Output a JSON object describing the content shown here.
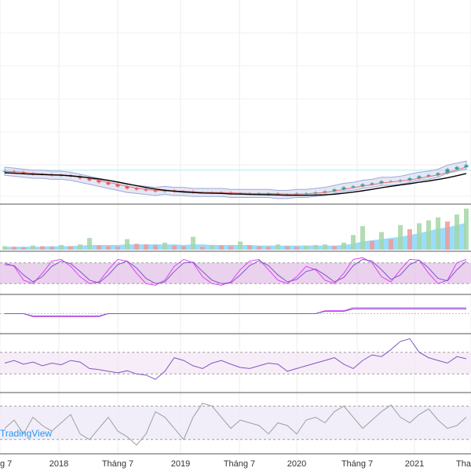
{
  "chart_data": [
    {
      "type": "candlestick",
      "panel": "price",
      "indicators": [
        "bollinger-bands",
        "moving-average-fast",
        "moving-average-slow"
      ],
      "series": [
        {
          "key": "close",
          "values": [
            46,
            45,
            44,
            43,
            43,
            42,
            42,
            41,
            39,
            37,
            35,
            33,
            31,
            29,
            28,
            27,
            26,
            27,
            26,
            26,
            25,
            25,
            25,
            25,
            24,
            24,
            24,
            24,
            24,
            23,
            23,
            24,
            24,
            25,
            26,
            28,
            30,
            31,
            33,
            34,
            36,
            36,
            37,
            39,
            41,
            42,
            44,
            48,
            50,
            52
          ]
        }
      ],
      "reference_line": 47,
      "colors": {
        "up": "#26a69a",
        "down": "#ef5350",
        "bands": "#9fa8da",
        "band_fill": "#c5cae9",
        "ma_fast": "#e57373",
        "ma_slow": "#000000"
      }
    },
    {
      "type": "bar",
      "panel": "volume",
      "series": [
        {
          "key": "volume",
          "values": [
            6,
            5,
            4,
            7,
            6,
            5,
            8,
            6,
            9,
            20,
            7,
            6,
            5,
            18,
            10,
            9,
            8,
            12,
            7,
            6,
            22,
            5,
            8,
            7,
            6,
            14,
            7,
            6,
            5,
            9,
            6,
            5,
            7,
            8,
            9,
            6,
            12,
            25,
            40,
            15,
            30,
            18,
            42,
            35,
            45,
            50,
            55,
            48,
            60,
            70
          ]
        },
        {
          "key": "volume-ma",
          "values": [
            5,
            5,
            5,
            5,
            5,
            6,
            6,
            6,
            7,
            8,
            8,
            8,
            8,
            9,
            9,
            9,
            9,
            9,
            9,
            8,
            9,
            9,
            8,
            8,
            8,
            8,
            8,
            7,
            7,
            7,
            7,
            7,
            7,
            7,
            7,
            7,
            8,
            10,
            14,
            16,
            18,
            20,
            22,
            25,
            28,
            32,
            36,
            38,
            42,
            46
          ]
        }
      ],
      "colors": {
        "up": "#a5d6a7",
        "down": "#ef9a9a",
        "ma_area": "#81d4fa"
      }
    },
    {
      "type": "line",
      "panel": "stochastic",
      "ylim": [
        0,
        100
      ],
      "band": [
        20,
        80
      ],
      "series": [
        {
          "key": "k",
          "values": [
            80,
            70,
            30,
            20,
            50,
            85,
            90,
            70,
            40,
            20,
            25,
            60,
            90,
            85,
            50,
            20,
            15,
            30,
            70,
            90,
            80,
            40,
            20,
            15,
            25,
            60,
            85,
            90,
            60,
            30,
            20,
            40,
            70,
            60,
            30,
            20,
            50,
            90,
            95,
            80,
            40,
            25,
            60,
            90,
            88,
            50,
            20,
            30,
            80,
            90
          ]
        },
        {
          "key": "d",
          "values": [
            75,
            72,
            45,
            25,
            40,
            70,
            85,
            78,
            55,
            30,
            22,
            45,
            75,
            85,
            65,
            35,
            20,
            25,
            55,
            80,
            82,
            55,
            30,
            20,
            22,
            45,
            72,
            86,
            72,
            45,
            25,
            32,
            55,
            62,
            45,
            25,
            38,
            72,
            90,
            85,
            60,
            32,
            45,
            75,
            88,
            65,
            35,
            28,
            60,
            85
          ]
        }
      ],
      "colors": {
        "k": "#e040fb",
        "d": "#7e57c2",
        "band_fill": "#e1bee7"
      }
    },
    {
      "type": "line",
      "panel": "macd",
      "series": [
        {
          "key": "macd",
          "values": [
            0,
            0,
            0,
            -1,
            -1,
            -1,
            -1,
            -1,
            -1,
            -1,
            -1,
            0,
            0,
            0,
            0,
            0,
            0,
            0,
            0,
            0,
            0,
            0,
            0,
            0,
            0,
            0,
            0,
            0,
            0,
            0,
            0,
            0,
            0,
            0,
            1,
            1,
            1,
            2,
            2,
            2,
            2,
            2,
            2,
            2,
            2,
            2,
            2,
            2,
            2,
            2
          ]
        }
      ],
      "colors": {
        "macd": "#e040fb",
        "signal": "#7e57c2"
      }
    },
    {
      "type": "line",
      "panel": "rsi",
      "ylim": [
        0,
        100
      ],
      "band": [
        30,
        70
      ],
      "series": [
        {
          "key": "rsi",
          "values": [
            50,
            55,
            48,
            52,
            45,
            50,
            47,
            55,
            52,
            40,
            38,
            35,
            32,
            36,
            30,
            28,
            20,
            35,
            60,
            55,
            45,
            40,
            50,
            55,
            48,
            42,
            40,
            45,
            50,
            48,
            35,
            40,
            45,
            50,
            55,
            60,
            48,
            40,
            55,
            65,
            62,
            75,
            90,
            95,
            70,
            60,
            55,
            50,
            62,
            58
          ]
        }
      ],
      "colors": {
        "rsi": "#7e57c2",
        "band_fill": "#f3e5f5"
      }
    },
    {
      "type": "line",
      "panel": "oscillator",
      "ylim": [
        0,
        100
      ],
      "band": [
        20,
        80
      ],
      "series": [
        {
          "key": "value",
          "values": [
            40,
            55,
            30,
            60,
            45,
            35,
            50,
            65,
            30,
            20,
            40,
            60,
            35,
            25,
            10,
            30,
            70,
            60,
            40,
            20,
            60,
            85,
            80,
            60,
            40,
            55,
            50,
            45,
            30,
            50,
            45,
            30,
            55,
            60,
            50,
            70,
            80,
            60,
            40,
            55,
            70,
            82,
            60,
            50,
            65,
            75,
            55,
            40,
            45,
            60
          ]
        }
      ],
      "colors": {
        "value": "#9e9e9e",
        "band_fill": "#ede7f6"
      }
    }
  ],
  "x_axis": {
    "tick_labels": [
      "g 7",
      "2018",
      "Tháng 7",
      "2019",
      "Tháng 7",
      "2020",
      "Tháng 7",
      "2021",
      "Tha"
    ]
  },
  "watermark": "TradingView"
}
